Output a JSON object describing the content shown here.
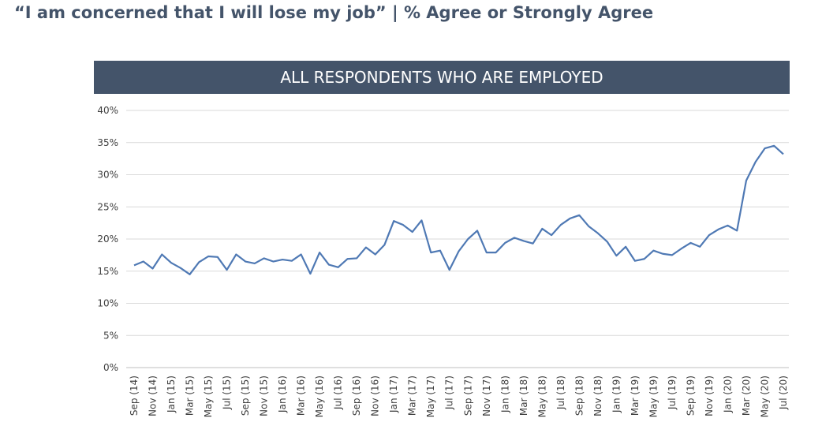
{
  "page": {
    "title": "“I am concerned that I will lose my job” | % Agree or Strongly Agree"
  },
  "colors": {
    "title": "#44546a",
    "banner_background": "#44546a",
    "banner_text": "#ffffff",
    "line": "#4f79b4",
    "gridline": "#d9d9d9",
    "tick_text": "#404040"
  },
  "chart_data": {
    "type": "line",
    "title": "ALL RESPONDENTS WHO ARE EMPLOYED",
    "xlabel": "",
    "ylabel": "",
    "ylim": [
      0,
      40
    ],
    "yticks": [
      0,
      5,
      10,
      15,
      20,
      25,
      30,
      35,
      40
    ],
    "ytick_labels": [
      "0%",
      "5%",
      "10%",
      "15%",
      "20%",
      "25%",
      "30%",
      "35%",
      "40%"
    ],
    "grid": true,
    "legend": "none",
    "x": [
      "Sep (14)",
      "Oct (14)",
      "Nov (14)",
      "Dec (14)",
      "Jan (15)",
      "Feb (15)",
      "Mar (15)",
      "Apr (15)",
      "May (15)",
      "Jun (15)",
      "Jul (15)",
      "Aug (15)",
      "Sep (15)",
      "Oct (15)",
      "Nov (15)",
      "Dec (15)",
      "Jan (16)",
      "Feb (16)",
      "Mar (16)",
      "Apr (16)",
      "May (16)",
      "Jun (16)",
      "Jul (16)",
      "Aug (16)",
      "Sep (16)",
      "Oct (16)",
      "Nov (16)",
      "Dec (16)",
      "Jan (17)",
      "Feb (17)",
      "Mar (17)",
      "Apr (17)",
      "May (17)",
      "Jun (17)",
      "Jul (17)",
      "Aug (17)",
      "Sep (17)",
      "Oct (17)",
      "Nov (17)",
      "Dec (17)",
      "Jan (18)",
      "Feb (18)",
      "Mar (18)",
      "Apr (18)",
      "May (18)",
      "Jun (18)",
      "Jul (18)",
      "Aug (18)",
      "Sep (18)",
      "Oct (18)",
      "Nov (18)",
      "Dec (18)",
      "Jan (19)",
      "Feb (19)",
      "Mar (19)",
      "Apr (19)",
      "May (19)",
      "Jun (19)",
      "Jul (19)",
      "Aug (19)",
      "Sep (19)",
      "Oct (19)",
      "Nov (19)",
      "Dec (19)",
      "Jan (20)",
      "Feb (20)",
      "Mar (20)",
      "Apr (20)",
      "May (20)",
      "Jun (20)",
      "Jul (20)"
    ],
    "x_tick_labels": [
      "Sep (14)",
      "Nov (14)",
      "Jan (15)",
      "Mar (15)",
      "May (15)",
      "Jul (15)",
      "Sep (15)",
      "Nov (15)",
      "Jan (16)",
      "Mar (16)",
      "May (16)",
      "Jul (16)",
      "Sep (16)",
      "Nov (16)",
      "Jan (17)",
      "Mar (17)",
      "May (17)",
      "Jul (17)",
      "Sep (17)",
      "Nov (17)",
      "Jan (18)",
      "Mar (18)",
      "May (18)",
      "Jul (18)",
      "Sep (18)",
      "Nov (18)",
      "Jan (19)",
      "Mar (19)",
      "May (19)",
      "Jul (19)",
      "Sep (19)",
      "Nov (19)",
      "Jan (20)",
      "Mar (20)",
      "May (20)",
      "Jul (20)"
    ],
    "series": [
      {
        "values": [
          15.9,
          16.5,
          15.4,
          17.6,
          16.3,
          15.5,
          14.5,
          16.4,
          17.3,
          17.2,
          15.2,
          17.6,
          16.5,
          16.2,
          17.0,
          16.5,
          16.8,
          16.6,
          17.6,
          14.6,
          17.9,
          16.0,
          15.6,
          16.9,
          17.0,
          18.7,
          17.6,
          19.1,
          22.8,
          22.2,
          21.1,
          22.9,
          17.9,
          18.2,
          15.2,
          18.1,
          20.0,
          21.3,
          17.9,
          17.9,
          19.4,
          20.2,
          19.7,
          19.3,
          21.6,
          20.6,
          22.2,
          23.2,
          23.7,
          22.0,
          20.9,
          19.6,
          17.4,
          18.8,
          16.6,
          16.9,
          18.2,
          17.7,
          17.5,
          18.5,
          19.4,
          18.8,
          20.6,
          21.5,
          22.1,
          21.3,
          29.1,
          32.0,
          34.1,
          34.5,
          33.2
        ]
      }
    ]
  }
}
